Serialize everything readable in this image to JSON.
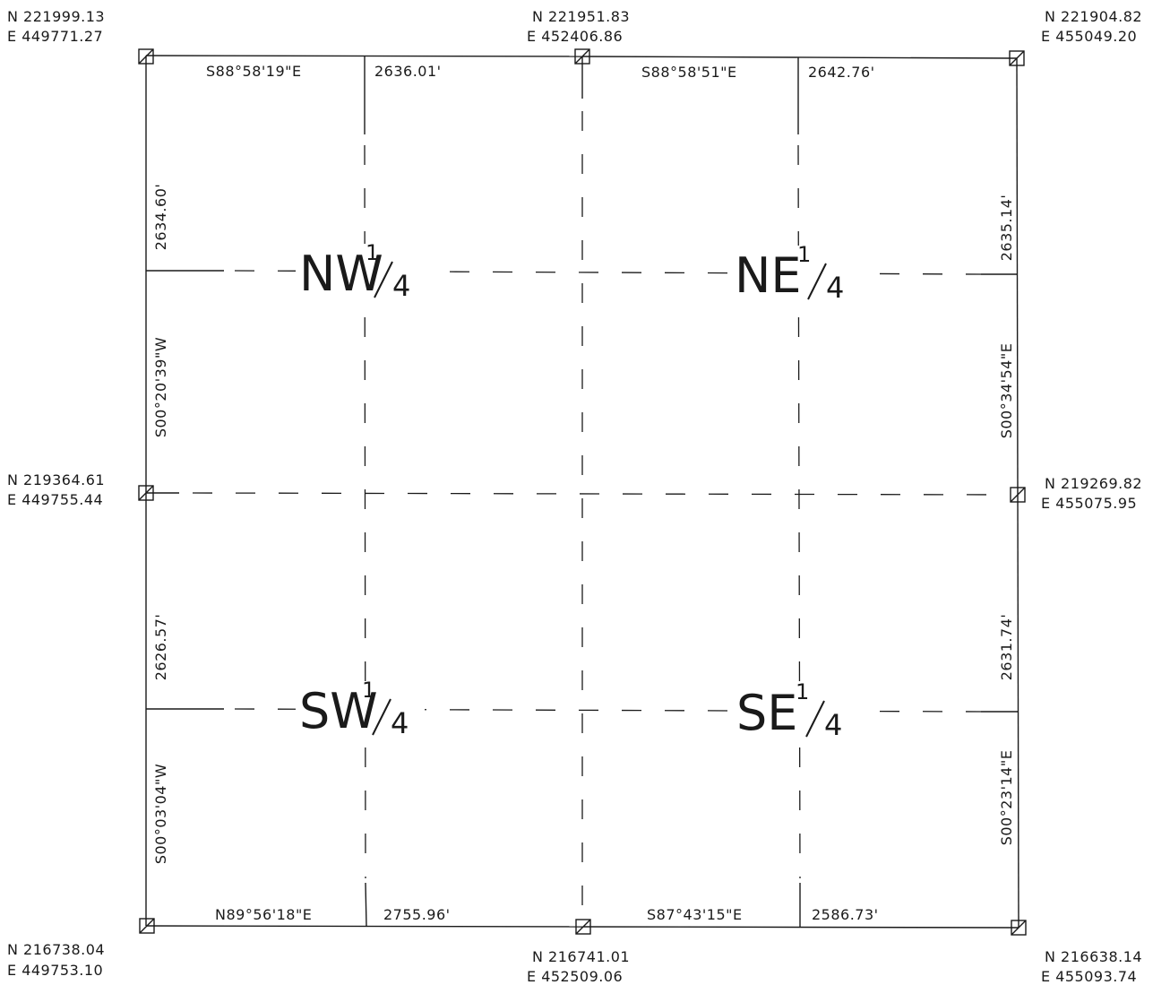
{
  "corners": {
    "nw": {
      "n": "N 221999.13",
      "e": "E 449771.27"
    },
    "n_mid": {
      "n": "N 221951.83",
      "e": "E 452406.86"
    },
    "ne": {
      "n": "N 221904.82",
      "e": "E 455049.20"
    },
    "w_mid": {
      "n": "N 219364.61",
      "e": "E 449755.44"
    },
    "e_mid": {
      "n": "N 219269.82",
      "e": "E 455075.95"
    },
    "sw": {
      "n": "N 216738.04",
      "e": "E 449753.10"
    },
    "s_mid": {
      "n": "N 216741.01",
      "e": "E 452509.06"
    },
    "se": {
      "n": "N 216638.14",
      "e": "E 455093.74"
    }
  },
  "calls": {
    "north_west_bearing": "S88°58'19\"E",
    "north_west_distance": "2636.01'",
    "north_east_bearing": "S88°58'51\"E",
    "north_east_distance": "2642.76'",
    "south_west_bearing": "N89°56'18\"E",
    "south_west_distance": "2755.96'",
    "south_east_bearing": "S87°43'15\"E",
    "south_east_distance": "2586.73'",
    "west_north_distance": "2634.60'",
    "west_north_bearing": "S00°20'39\"W",
    "west_south_distance": "2626.57'",
    "west_south_bearing": "S00°03'04\"W",
    "east_north_distance": "2635.14'",
    "east_north_bearing": "S00°34'54\"E",
    "east_south_distance": "2631.74'",
    "east_south_bearing": "S00°23'14\"E"
  },
  "quarters": {
    "nw": {
      "prefix": "NW",
      "num": "1",
      "den": "4"
    },
    "ne": {
      "prefix": "NE",
      "num": "1",
      "den": "4"
    },
    "sw": {
      "prefix": "SW",
      "num": "1",
      "den": "4"
    },
    "se": {
      "prefix": "SE",
      "num": "1",
      "den": "4"
    }
  }
}
